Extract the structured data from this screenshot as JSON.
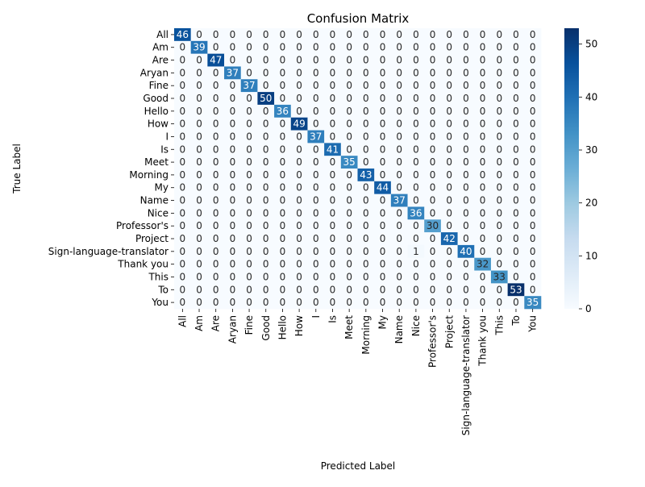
{
  "chart_data": {
    "type": "heatmap",
    "title": "Confusion Matrix",
    "xlabel": "Predicted Label",
    "ylabel": "True Label",
    "labels": [
      "All",
      "Am",
      "Are",
      "Aryan",
      "Fine",
      "Good",
      "Hello",
      "How",
      "I",
      "Is",
      "Meet",
      "Morning",
      "My",
      "Name",
      "Nice",
      "Professor's",
      "Project",
      "Sign-language-translator",
      "Thank you",
      "This",
      "To",
      "You"
    ],
    "matrix": [
      [
        46,
        0,
        0,
        0,
        0,
        0,
        0,
        0,
        0,
        0,
        0,
        0,
        0,
        0,
        0,
        0,
        0,
        0,
        0,
        0,
        0,
        0
      ],
      [
        0,
        39,
        0,
        0,
        0,
        0,
        0,
        0,
        0,
        0,
        0,
        0,
        0,
        0,
        0,
        0,
        0,
        0,
        0,
        0,
        0,
        0
      ],
      [
        0,
        0,
        47,
        0,
        0,
        0,
        0,
        0,
        0,
        0,
        0,
        0,
        0,
        0,
        0,
        0,
        0,
        0,
        0,
        0,
        0,
        0
      ],
      [
        0,
        0,
        0,
        37,
        0,
        0,
        0,
        0,
        0,
        0,
        0,
        0,
        0,
        0,
        0,
        0,
        0,
        0,
        0,
        0,
        0,
        0
      ],
      [
        0,
        0,
        0,
        0,
        37,
        0,
        0,
        0,
        0,
        0,
        0,
        0,
        0,
        0,
        0,
        0,
        0,
        0,
        0,
        0,
        0,
        0
      ],
      [
        0,
        0,
        0,
        0,
        0,
        50,
        0,
        0,
        0,
        0,
        0,
        0,
        0,
        0,
        0,
        0,
        0,
        0,
        0,
        0,
        0,
        0
      ],
      [
        0,
        0,
        0,
        0,
        0,
        0,
        36,
        0,
        0,
        0,
        0,
        0,
        0,
        0,
        0,
        0,
        0,
        0,
        0,
        0,
        0,
        0
      ],
      [
        0,
        0,
        0,
        0,
        0,
        0,
        0,
        49,
        0,
        0,
        0,
        0,
        0,
        0,
        0,
        0,
        0,
        0,
        0,
        0,
        0,
        0
      ],
      [
        0,
        0,
        0,
        0,
        0,
        0,
        0,
        0,
        37,
        0,
        0,
        0,
        0,
        0,
        0,
        0,
        0,
        0,
        0,
        0,
        0,
        0
      ],
      [
        0,
        0,
        0,
        0,
        0,
        0,
        0,
        0,
        0,
        41,
        0,
        0,
        0,
        0,
        0,
        0,
        0,
        0,
        0,
        0,
        0,
        0
      ],
      [
        0,
        0,
        0,
        0,
        0,
        0,
        0,
        0,
        0,
        0,
        35,
        0,
        0,
        0,
        0,
        0,
        0,
        0,
        0,
        0,
        0,
        0
      ],
      [
        0,
        0,
        0,
        0,
        0,
        0,
        0,
        0,
        0,
        0,
        0,
        43,
        0,
        0,
        0,
        0,
        0,
        0,
        0,
        0,
        0,
        0
      ],
      [
        0,
        0,
        0,
        0,
        0,
        0,
        0,
        0,
        0,
        0,
        0,
        0,
        44,
        0,
        0,
        0,
        0,
        0,
        0,
        0,
        0,
        0
      ],
      [
        0,
        0,
        0,
        0,
        0,
        0,
        0,
        0,
        0,
        0,
        0,
        0,
        0,
        37,
        0,
        0,
        0,
        0,
        0,
        0,
        0,
        0
      ],
      [
        0,
        0,
        0,
        0,
        0,
        0,
        0,
        0,
        0,
        0,
        0,
        0,
        0,
        0,
        36,
        0,
        0,
        0,
        0,
        0,
        0,
        0
      ],
      [
        0,
        0,
        0,
        0,
        0,
        0,
        0,
        0,
        0,
        0,
        0,
        0,
        0,
        0,
        0,
        30,
        0,
        0,
        0,
        0,
        0,
        0
      ],
      [
        0,
        0,
        0,
        0,
        0,
        0,
        0,
        0,
        0,
        0,
        0,
        0,
        0,
        0,
        0,
        0,
        42,
        0,
        0,
        0,
        0,
        0
      ],
      [
        0,
        0,
        0,
        0,
        0,
        0,
        0,
        0,
        0,
        0,
        0,
        0,
        0,
        0,
        1,
        0,
        0,
        40,
        0,
        0,
        0,
        0
      ],
      [
        0,
        0,
        0,
        0,
        0,
        0,
        0,
        0,
        0,
        0,
        0,
        0,
        0,
        0,
        0,
        0,
        0,
        0,
        32,
        0,
        0,
        0
      ],
      [
        0,
        0,
        0,
        0,
        0,
        0,
        0,
        0,
        0,
        0,
        0,
        0,
        0,
        0,
        0,
        0,
        0,
        0,
        0,
        33,
        0,
        0
      ],
      [
        0,
        0,
        0,
        0,
        0,
        0,
        0,
        0,
        0,
        0,
        0,
        0,
        0,
        0,
        0,
        0,
        0,
        0,
        0,
        0,
        53,
        0
      ],
      [
        0,
        0,
        0,
        0,
        0,
        0,
        0,
        0,
        0,
        0,
        0,
        0,
        0,
        0,
        0,
        0,
        0,
        0,
        0,
        0,
        0,
        35
      ]
    ],
    "vmin": 0,
    "vmax": 53,
    "colorbar_ticks": [
      0,
      10,
      20,
      30,
      40,
      50
    ],
    "colormap": "Blues",
    "colormap_stops": [
      "#f7fbff",
      "#deebf7",
      "#c6dbef",
      "#9ecae1",
      "#6baed6",
      "#4292c6",
      "#2171b5",
      "#08519c",
      "#08306b"
    ],
    "grid": false,
    "legend": "colorbar-right"
  }
}
